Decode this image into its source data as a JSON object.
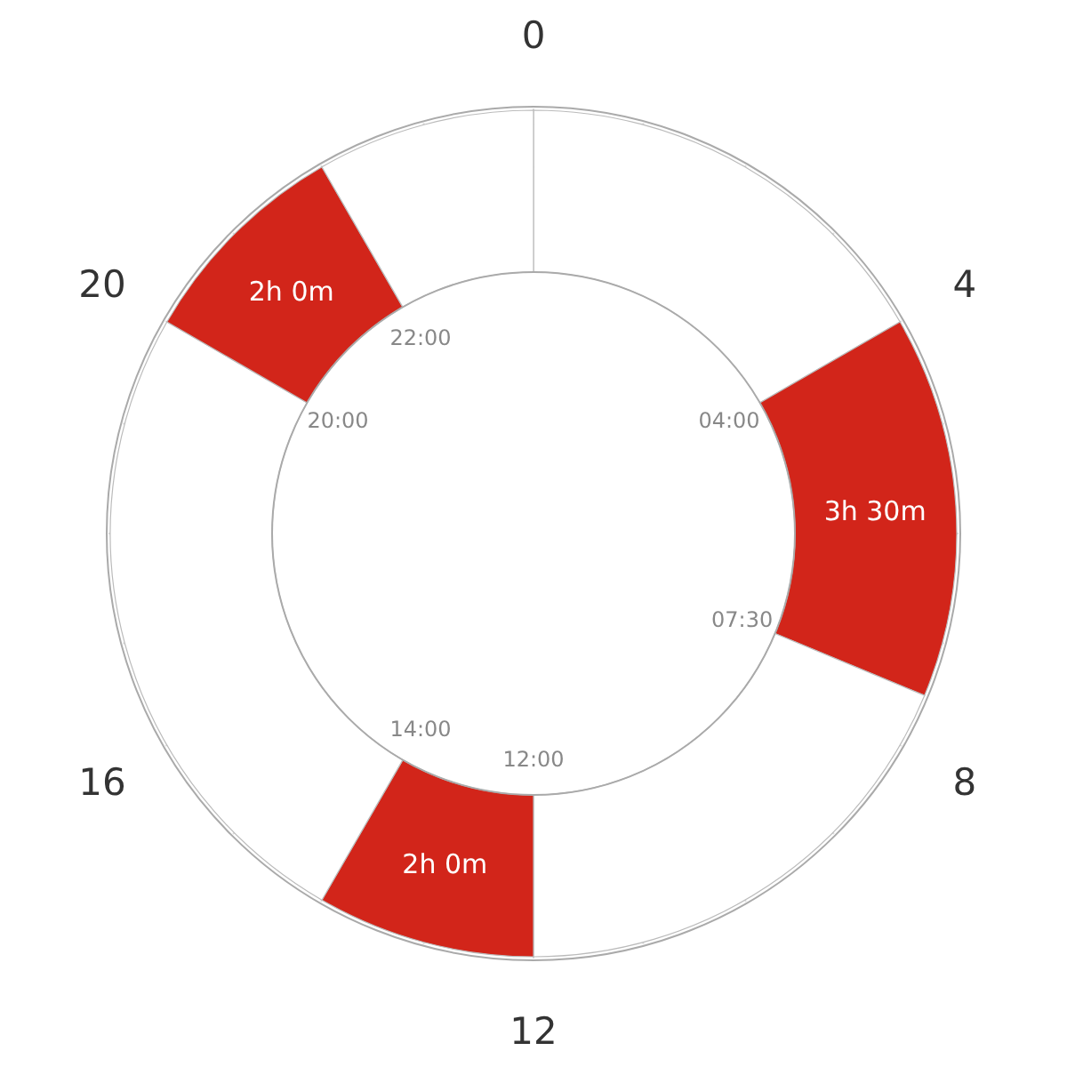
{
  "chart_data": {
    "type": "donut",
    "categories": [
      null,
      null,
      null,
      null,
      null,
      null,
      null
    ],
    "values": [
      4,
      3.5,
      4.5,
      2,
      6,
      2,
      2
    ],
    "colors": [
      "#ffffff",
      "#d2251a",
      "#ffffff",
      "#d2251a",
      "#ffffff",
      "#d2251a",
      "#ffffff"
    ],
    "value_labels": [
      null,
      "3h 30m",
      null,
      "2h 0m",
      null,
      "2h 0m",
      null
    ],
    "grid": true,
    "annotations": [
      "0",
      "4",
      "8",
      "12",
      "16",
      "20",
      "04:00",
      "07:30",
      "12:00",
      "14:00",
      "20:00",
      "22:00"
    ]
  }
}
